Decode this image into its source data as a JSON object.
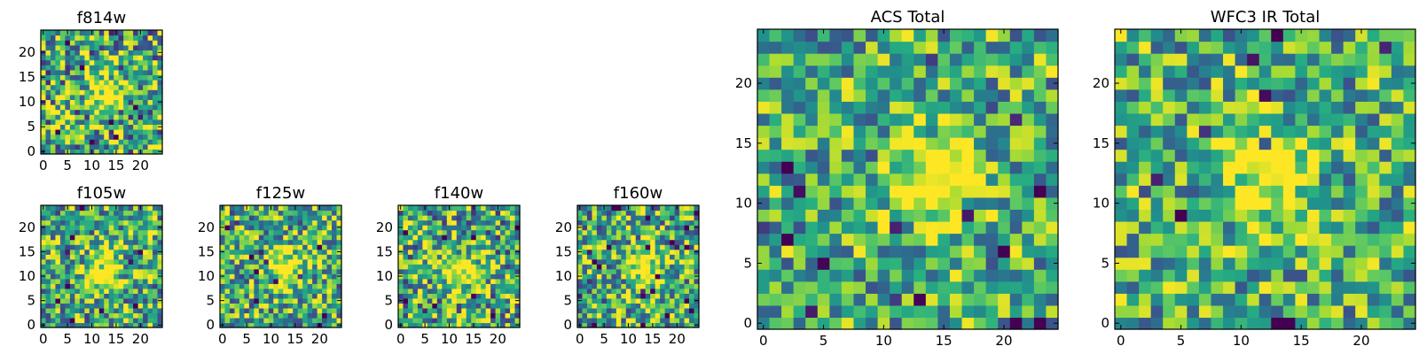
{
  "chart_data": [
    {
      "id": "f814w",
      "type": "heatmap",
      "title": "f814w",
      "grid_size": 25,
      "colormap": "viridis",
      "source_center": [
        13,
        12
      ],
      "source_amplitude": 0.55,
      "source_sigma": 2.3,
      "noise_amplitude": 0.95,
      "seed": 11,
      "x_ticks": [
        0,
        5,
        10,
        15,
        20
      ],
      "y_ticks": [
        0,
        5,
        10,
        15,
        20
      ],
      "x_tick_labels": [
        "0",
        "5",
        "10",
        "15",
        "20"
      ],
      "y_tick_labels": [
        "0",
        "5",
        "10",
        "15",
        "20"
      ],
      "xlim": [
        -0.5,
        24.5
      ],
      "ylim": [
        -0.5,
        24.5
      ]
    },
    {
      "id": "f105w",
      "type": "heatmap",
      "title": "f105w",
      "grid_size": 25,
      "colormap": "viridis",
      "source_center": [
        12,
        11
      ],
      "source_amplitude": 0.6,
      "source_sigma": 2.6,
      "noise_amplitude": 0.85,
      "seed": 23,
      "x_ticks": [
        0,
        5,
        10,
        15,
        20
      ],
      "y_ticks": [
        0,
        5,
        10,
        15,
        20
      ],
      "x_tick_labels": [
        "0",
        "5",
        "10",
        "15",
        "20"
      ],
      "y_tick_labels": [
        "0",
        "5",
        "10",
        "15",
        "20"
      ],
      "xlim": [
        -0.5,
        24.5
      ],
      "ylim": [
        -0.5,
        24.5
      ]
    },
    {
      "id": "f125w",
      "type": "heatmap",
      "title": "f125w",
      "grid_size": 25,
      "colormap": "viridis",
      "source_center": [
        13,
        12
      ],
      "source_amplitude": 0.55,
      "source_sigma": 2.6,
      "noise_amplitude": 0.85,
      "seed": 37,
      "x_ticks": [
        0,
        5,
        10,
        15,
        20
      ],
      "y_ticks": [
        0,
        5,
        10,
        15,
        20
      ],
      "x_tick_labels": [
        "0",
        "5",
        "10",
        "15",
        "20"
      ],
      "y_tick_labels": [
        "0",
        "5",
        "10",
        "15",
        "20"
      ],
      "xlim": [
        -0.5,
        24.5
      ],
      "ylim": [
        -0.5,
        24.5
      ]
    },
    {
      "id": "f140w",
      "type": "heatmap",
      "title": "f140w",
      "grid_size": 25,
      "colormap": "viridis",
      "source_center": [
        13,
        11
      ],
      "source_amplitude": 0.55,
      "source_sigma": 2.5,
      "noise_amplitude": 0.9,
      "seed": 51,
      "x_ticks": [
        0,
        5,
        10,
        15,
        20
      ],
      "y_ticks": [
        0,
        5,
        10,
        15,
        20
      ],
      "x_tick_labels": [
        "0",
        "5",
        "10",
        "15",
        "20"
      ],
      "y_tick_labels": [
        "0",
        "5",
        "10",
        "15",
        "20"
      ],
      "xlim": [
        -0.5,
        24.5
      ],
      "ylim": [
        -0.5,
        24.5
      ]
    },
    {
      "id": "f160w",
      "type": "heatmap",
      "title": "f160w",
      "grid_size": 25,
      "colormap": "viridis",
      "source_center": [
        13,
        12
      ],
      "source_amplitude": 0.6,
      "source_sigma": 2.4,
      "noise_amplitude": 0.85,
      "seed": 67,
      "x_ticks": [
        0,
        5,
        10,
        15,
        20
      ],
      "y_ticks": [
        0,
        5,
        10,
        15,
        20
      ],
      "x_tick_labels": [
        "0",
        "5",
        "10",
        "15",
        "20"
      ],
      "y_tick_labels": [
        "0",
        "5",
        "10",
        "15",
        "20"
      ],
      "xlim": [
        -0.5,
        24.5
      ],
      "ylim": [
        -0.5,
        24.5
      ]
    },
    {
      "id": "acs_total",
      "type": "heatmap",
      "title": "ACS Total",
      "grid_size": 25,
      "colormap": "viridis",
      "source_center": [
        14,
        12
      ],
      "source_amplitude": 0.5,
      "source_sigma": 2.6,
      "noise_amplitude": 0.75,
      "seed": 83,
      "x_ticks": [
        0,
        5,
        10,
        15,
        20
      ],
      "y_ticks": [
        0,
        5,
        10,
        15,
        20
      ],
      "x_tick_labels": [
        "0",
        "5",
        "10",
        "15",
        "20"
      ],
      "y_tick_labels": [
        "0",
        "5",
        "10",
        "15",
        "20"
      ],
      "xlim": [
        -0.5,
        24.5
      ],
      "ylim": [
        -0.5,
        24.5
      ]
    },
    {
      "id": "wfc3_ir_total",
      "type": "heatmap",
      "title": "WFC3 IR Total",
      "grid_size": 25,
      "colormap": "viridis",
      "source_center": [
        12,
        12
      ],
      "source_amplitude": 0.5,
      "source_sigma": 2.6,
      "noise_amplitude": 0.75,
      "seed": 97,
      "x_ticks": [
        0,
        5,
        10,
        15,
        20
      ],
      "y_ticks": [
        0,
        5,
        10,
        15,
        20
      ],
      "x_tick_labels": [
        "0",
        "5",
        "10",
        "15",
        "20"
      ],
      "y_tick_labels": [
        "0",
        "5",
        "10",
        "15",
        "20"
      ],
      "xlim": [
        -0.5,
        24.5
      ],
      "ylim": [
        -0.5,
        24.5
      ]
    }
  ]
}
